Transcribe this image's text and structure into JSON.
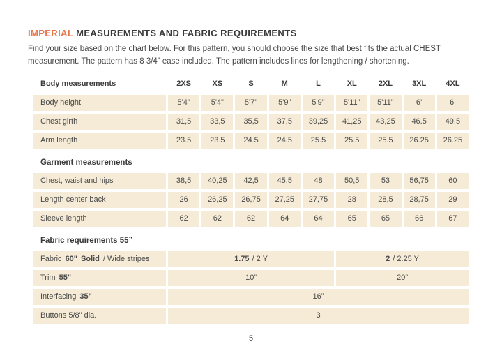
{
  "header": {
    "title_accent": "IMPERIAL",
    "title_main": "MEASUREMENTS AND FABRIC REQUIREMENTS",
    "intro": "Find your size based on the chart below. For this pattern, you should choose the size that best fits the actual CHEST measurement. The pattern has 8 3/4” ease included. The pattern includes lines for lengthening / shortening."
  },
  "size_table": {
    "section_body_label": "Body measurements",
    "sizes": [
      "2XS",
      "XS",
      "S",
      "M",
      "L",
      "XL",
      "2XL",
      "3XL",
      "4XL"
    ],
    "body_rows": [
      {
        "label": "Body height",
        "values": [
          "5'4\"",
          "5'4\"",
          "5'7\"",
          "5'9\"",
          "5'9\"",
          "5'11\"",
          "5'11\"",
          "6’",
          "6’"
        ]
      },
      {
        "label": "Chest girth",
        "values": [
          "31,5",
          "33,5",
          "35,5",
          "37,5",
          "39,25",
          "41,25",
          "43,25",
          "46.5",
          "49.5"
        ]
      },
      {
        "label": "Arm length",
        "values": [
          "23.5",
          "23.5",
          "24.5",
          "24.5",
          "25.5",
          "25.5",
          "25.5",
          "26.25",
          "26.25"
        ]
      }
    ],
    "section_garment_label": "Garment measurements",
    "garment_rows": [
      {
        "label": "Chest, waist and hips",
        "values": [
          "38,5",
          "40,25",
          "42,5",
          "45,5",
          "48",
          "50,5",
          "53",
          "56,75",
          "60"
        ]
      },
      {
        "label": "Length center back",
        "values": [
          "26",
          "26,25",
          "26,75",
          "27,25",
          "27,75",
          "28",
          "28,5",
          "28,75",
          "29"
        ]
      },
      {
        "label": "Sleeve length",
        "values": [
          "62",
          "62",
          "62",
          "64",
          "64",
          "65",
          "65",
          "66",
          "67"
        ]
      }
    ],
    "section_fabric_label": "Fabric requirements 55”",
    "fabric": {
      "row_fabric": {
        "label_name": "Fabric",
        "label_width": "60\"",
        "label_solid": "Solid",
        "label_rest": "/ Wide stripes",
        "left_bold": "1.75",
        "left_rest": "/ 2 Y",
        "right_bold": "2",
        "right_rest": "/ 2.25 Y"
      },
      "row_trim": {
        "label_name": "Trim",
        "label_width": "55\"",
        "left": "10”",
        "right": "20”"
      },
      "row_interfacing": {
        "label_name": "Interfacing",
        "label_width": "35\"",
        "full": "16”"
      },
      "row_buttons": {
        "label": "Buttons 5/8\" dia.",
        "full": "3"
      }
    }
  },
  "footer": {
    "page_number": "5"
  },
  "colors": {
    "accent_orange": "#E8764C",
    "cell_beige": "#F5EBD6",
    "text_dark": "#3D3D3D",
    "page_background": "#FFFFFF"
  }
}
